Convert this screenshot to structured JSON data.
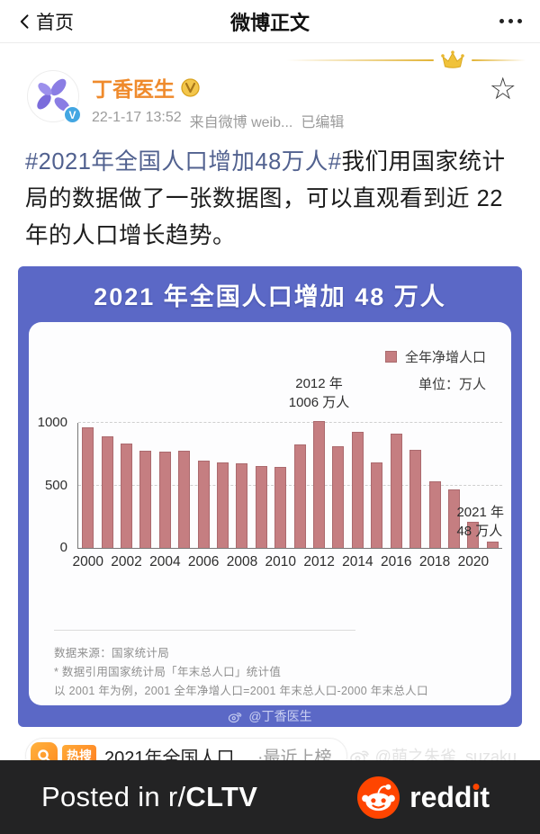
{
  "nav": {
    "back_label": "首页",
    "title": "微博正文"
  },
  "post": {
    "author": "丁香医生",
    "verified_letter": "V",
    "timestamp": "22-1-17 13:52",
    "source": "来自微博 weib...",
    "edited": "已编辑",
    "star_glyph": "☆",
    "hashtag": "#2021年全国人口增加48万人#",
    "body": "我们用国家统计局的数据做了一张数据图，可以直观看到近 22 年的人口增长趋势。"
  },
  "chart": {
    "title": "2021 年全国人口增加 48 万人",
    "legend_label": "全年净增人口",
    "unit_label": "单位：万人",
    "note_source": "数据来源：国家统计局",
    "note_ref": "* 数据引用国家统计局「年末总人口」统计值",
    "note_example": "以 2001 年为例，2001 全年净增人口=2001 年末总人口-2000 年末总人口",
    "watermark": "@丁香医生"
  },
  "chart_data": {
    "type": "bar",
    "title": "2021 年全国人口增加 48 万人",
    "legend": [
      "全年净增人口"
    ],
    "unit": "万人",
    "x": [
      2000,
      2001,
      2002,
      2003,
      2004,
      2005,
      2006,
      2007,
      2008,
      2009,
      2010,
      2011,
      2012,
      2013,
      2014,
      2015,
      2016,
      2017,
      2018,
      2019,
      2020,
      2021
    ],
    "values": [
      957,
      884,
      826,
      774,
      761,
      768,
      692,
      681,
      673,
      648,
      641,
      825,
      1006,
      804,
      920,
      680,
      906,
      779,
      530,
      467,
      204,
      48
    ],
    "ylabel": "万人",
    "ylim": [
      0,
      1000
    ],
    "yticks": [
      0,
      500,
      1000
    ],
    "xticks": [
      2000,
      2002,
      2004,
      2006,
      2008,
      2010,
      2012,
      2014,
      2016,
      2018,
      2020
    ],
    "grid": "dashed horizontal at 500 and 1000",
    "legend_position": "top-right",
    "bar_color": "#c57e81",
    "annotations": [
      {
        "x": 2012,
        "lines": [
          "2012 年",
          "1006 万人"
        ]
      },
      {
        "x": 2021,
        "lines": [
          "2021 年",
          "48 万人"
        ]
      }
    ]
  },
  "hot_search": {
    "tag": "热搜",
    "text": "2021年全国人口...",
    "suffix": "·最近上榜"
  },
  "watermark_user": "@萌之朱雀_suzaku",
  "reddit_bar": {
    "posted_prefix": "Posted in r/",
    "subreddit": "CLTV",
    "brand_redd": "redd",
    "brand_i": "ı",
    "brand_t": "t"
  },
  "colors": {
    "chart_frame_blue": "#5b68c6",
    "bar_fill": "#c57e81",
    "author_orange": "#ef8a2c",
    "hashtag_blue": "#51618f",
    "reddit_orange": "#ff4500",
    "reddit_bar_bg": "#232324"
  }
}
